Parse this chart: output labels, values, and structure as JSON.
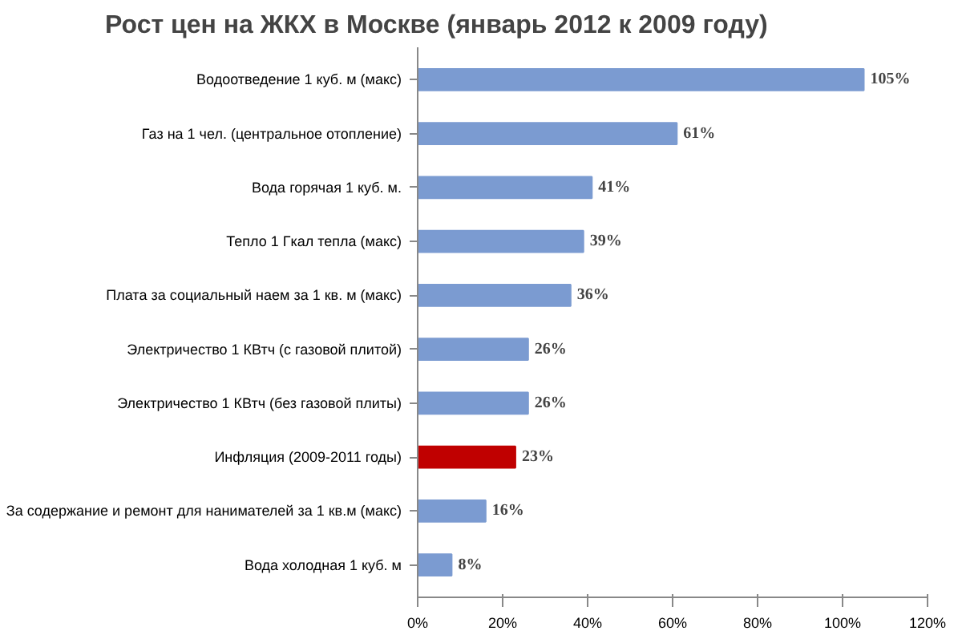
{
  "chart_data": {
    "type": "bar",
    "orientation": "horizontal",
    "title": "Рост цен на ЖКХ в Москве (январь 2012 к 2009 году)",
    "categories": [
      "Водоотведение 1 куб. м (макс)",
      "Газ на 1 чел. (центральное отопление)",
      "Вода горячая 1 куб. м.",
      "Тепло 1 Гкал тепла (макс)",
      "Плата за социальный наем за 1 кв. м (макс)",
      "Электричество 1 КВтч (с газовой плитой)",
      "Электричество 1 КВтч (без газовой плиты)",
      "Инфляция (2009-2011 годы)",
      "За содержание и ремонт для нанимателей за 1 кв.м (макс)",
      "Вода холодная 1 куб. м"
    ],
    "values": [
      105,
      61,
      41,
      39,
      36,
      26,
      26,
      23,
      16,
      8
    ],
    "colors": [
      "#7b9bd1",
      "#7b9bd1",
      "#7b9bd1",
      "#7b9bd1",
      "#7b9bd1",
      "#7b9bd1",
      "#7b9bd1",
      "#c00000",
      "#7b9bd1",
      "#7b9bd1"
    ],
    "value_labels": [
      "105%",
      "61%",
      "41%",
      "39%",
      "36%",
      "26%",
      "26%",
      "23%",
      "16%",
      "8%"
    ],
    "xlim": [
      0,
      120
    ],
    "xticks": [
      {
        "value": 0,
        "label": "0%"
      },
      {
        "value": 20,
        "label": "20%"
      },
      {
        "value": 40,
        "label": "40%"
      },
      {
        "value": 60,
        "label": "60%"
      },
      {
        "value": 80,
        "label": "80%"
      },
      {
        "value": 100,
        "label": "100%"
      },
      {
        "value": 120,
        "label": "120%"
      }
    ],
    "grid": false
  }
}
